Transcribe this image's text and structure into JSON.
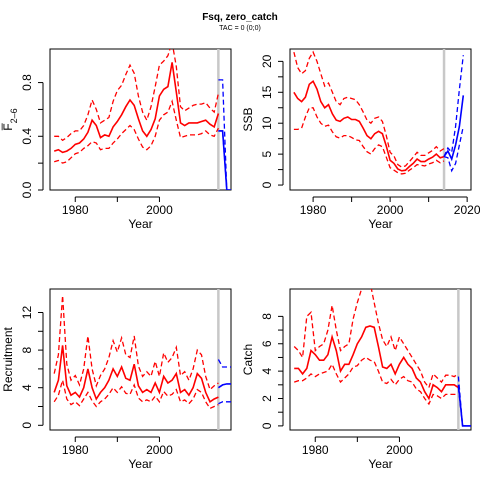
{
  "title": "Fsq, zero_catch",
  "subtitle": "TAC = 0 (0;0)",
  "chart_data": [
    {
      "type": "line",
      "ylabel": "F̅",
      "ylabel_sub": "2–6",
      "xlabel": "Year",
      "xlim": [
        1974,
        2017
      ],
      "ylim": [
        0,
        1.05
      ],
      "xticks": [
        1980,
        2000
      ],
      "yticks": [
        0.0,
        0.4,
        0.8
      ],
      "ytick_labels": [
        "0.0",
        "0.4",
        "0.8"
      ],
      "marker_year": 2014,
      "hist_x": [
        1975,
        1976,
        1977,
        1978,
        1979,
        1980,
        1981,
        1982,
        1983,
        1984,
        1985,
        1986,
        1987,
        1988,
        1989,
        1990,
        1991,
        1992,
        1993,
        1994,
        1995,
        1996,
        1997,
        1998,
        1999,
        2000,
        2001,
        2002,
        2003,
        2004,
        2005,
        2006,
        2007,
        2008,
        2009,
        2010,
        2011,
        2012,
        2013,
        2014
      ],
      "hist_median": [
        0.29,
        0.3,
        0.28,
        0.29,
        0.31,
        0.34,
        0.35,
        0.38,
        0.43,
        0.52,
        0.48,
        0.39,
        0.41,
        0.4,
        0.47,
        0.51,
        0.56,
        0.62,
        0.67,
        0.63,
        0.53,
        0.44,
        0.4,
        0.45,
        0.53,
        0.7,
        0.75,
        0.77,
        0.95,
        0.73,
        0.5,
        0.48,
        0.5,
        0.5,
        0.5,
        0.51,
        0.52,
        0.49,
        0.47,
        0.57
      ],
      "hist_lower": [
        0.21,
        0.22,
        0.2,
        0.21,
        0.24,
        0.27,
        0.28,
        0.31,
        0.33,
        0.36,
        0.35,
        0.3,
        0.31,
        0.31,
        0.35,
        0.38,
        0.42,
        0.45,
        0.48,
        0.45,
        0.38,
        0.32,
        0.3,
        0.33,
        0.4,
        0.52,
        0.56,
        0.58,
        0.66,
        0.52,
        0.39,
        0.4,
        0.41,
        0.41,
        0.41,
        0.42,
        0.44,
        0.41,
        0.4,
        0.46
      ],
      "hist_upper": [
        0.4,
        0.4,
        0.37,
        0.39,
        0.42,
        0.44,
        0.44,
        0.48,
        0.56,
        0.67,
        0.6,
        0.5,
        0.52,
        0.54,
        0.66,
        0.74,
        0.78,
        0.86,
        0.93,
        0.87,
        0.7,
        0.58,
        0.52,
        0.62,
        0.77,
        0.93,
        0.96,
        1.0,
        1.1,
        0.92,
        0.62,
        0.59,
        0.61,
        0.63,
        0.64,
        0.64,
        0.65,
        0.61,
        0.58,
        0.72
      ],
      "proj_x": [
        2014,
        2015,
        2016,
        2017
      ],
      "proj_median": [
        0.44,
        0.44,
        0.0,
        0.0
      ],
      "proj_lower": [
        0.44,
        0.44,
        0.0,
        0.0
      ],
      "proj_upper": [
        0.82,
        0.82,
        0.0,
        0.0
      ]
    },
    {
      "type": "line",
      "ylabel": "SSB",
      "xlabel": "Year",
      "xlim": [
        1974,
        2021
      ],
      "ylim": [
        -0.8,
        22
      ],
      "xticks": [
        1980,
        2000,
        2020
      ],
      "yticks": [
        0,
        5,
        10,
        15,
        20
      ],
      "ytick_labels": [
        "0",
        "5",
        "10",
        "15",
        "20"
      ],
      "marker_year": 2014,
      "hist_x": [
        1975,
        1976,
        1977,
        1978,
        1979,
        1980,
        1981,
        1982,
        1983,
        1984,
        1985,
        1986,
        1987,
        1988,
        1989,
        1990,
        1991,
        1992,
        1993,
        1994,
        1995,
        1996,
        1997,
        1998,
        1999,
        2000,
        2001,
        2002,
        2003,
        2004,
        2005,
        2006,
        2007,
        2008,
        2009,
        2010,
        2011,
        2012,
        2013,
        2014
      ],
      "hist_median": [
        15.0,
        14.0,
        13.5,
        14.2,
        16.3,
        16.8,
        15.5,
        13.5,
        12.5,
        13.0,
        11.5,
        10.5,
        10.3,
        10.8,
        11.0,
        10.6,
        10.6,
        10.3,
        9.2,
        8.0,
        7.5,
        8.3,
        8.7,
        8.3,
        6.3,
        4.0,
        3.5,
        2.6,
        2.3,
        2.4,
        3.0,
        3.5,
        4.2,
        3.8,
        3.8,
        4.2,
        4.5,
        5.0,
        4.4,
        4.6
      ],
      "hist_lower": [
        9.0,
        9.0,
        9.2,
        11.0,
        12.5,
        12.5,
        11.0,
        10.0,
        9.5,
        9.7,
        8.6,
        7.8,
        7.6,
        8.0,
        8.0,
        7.7,
        7.3,
        7.2,
        6.2,
        5.4,
        5.0,
        5.9,
        6.5,
        6.2,
        4.5,
        2.8,
        2.4,
        2.0,
        1.8,
        1.9,
        2.4,
        2.8,
        3.3,
        3.2,
        3.1,
        3.4,
        3.6,
        4.0,
        3.6,
        3.9
      ],
      "hist_upper": [
        21.5,
        19.0,
        18.0,
        18.5,
        20.5,
        21.5,
        20.0,
        18.0,
        16.0,
        16.5,
        15.0,
        13.5,
        13.0,
        14.0,
        14.2,
        14.0,
        13.8,
        13.0,
        11.8,
        10.5,
        10.0,
        10.8,
        11.0,
        10.3,
        8.0,
        5.3,
        4.7,
        3.3,
        2.9,
        3.1,
        3.8,
        4.5,
        5.3,
        4.8,
        4.8,
        5.2,
        5.6,
        6.2,
        5.5,
        5.9
      ],
      "proj_x": [
        2014,
        2015,
        2016,
        2017,
        2018,
        2019
      ],
      "proj_median": [
        4.6,
        5.5,
        4.2,
        6.5,
        9.5,
        14.5
      ],
      "proj_lower": [
        4.6,
        4.4,
        2.3,
        3.5,
        6.5,
        9.5
      ],
      "proj_upper": [
        4.6,
        6.0,
        5.3,
        9.5,
        15.5,
        21.0
      ]
    },
    {
      "type": "line",
      "ylabel": "Recruitment",
      "xlabel": "Year",
      "xlim": [
        1974,
        2017
      ],
      "ylim": [
        -0.5,
        14.5
      ],
      "xticks": [
        1980,
        2000
      ],
      "yticks": [
        0,
        4,
        8,
        12
      ],
      "ytick_labels": [
        "0",
        "4",
        "8",
        "12"
      ],
      "marker_year": 2014,
      "hist_x": [
        1975,
        1976,
        1977,
        1978,
        1979,
        1980,
        1981,
        1982,
        1983,
        1984,
        1985,
        1986,
        1987,
        1988,
        1989,
        1990,
        1991,
        1992,
        1993,
        1994,
        1995,
        1996,
        1997,
        1998,
        1999,
        2000,
        2001,
        2002,
        2003,
        2004,
        2005,
        2006,
        2007,
        2008,
        2009,
        2010,
        2011,
        2012,
        2013,
        2014
      ],
      "hist_median": [
        3.5,
        4.8,
        8.5,
        4.2,
        3.2,
        3.5,
        3.0,
        4.0,
        6.0,
        4.0,
        2.8,
        3.5,
        4.0,
        4.8,
        6.0,
        5.2,
        6.2,
        5.0,
        4.8,
        6.5,
        4.2,
        3.5,
        3.8,
        3.5,
        4.5,
        3.5,
        5.2,
        4.5,
        4.8,
        5.5,
        3.5,
        3.8,
        3.2,
        4.0,
        5.5,
        5.0,
        3.5,
        2.5,
        2.8,
        3.0
      ],
      "hist_lower": [
        2.5,
        3.2,
        4.8,
        2.8,
        2.2,
        2.5,
        2.1,
        2.8,
        3.5,
        2.6,
        2.0,
        2.5,
        2.8,
        3.3,
        4.0,
        3.5,
        4.1,
        3.4,
        3.3,
        4.3,
        2.9,
        2.5,
        2.7,
        2.5,
        3.1,
        2.5,
        3.6,
        3.1,
        3.3,
        3.8,
        2.5,
        2.7,
        2.3,
        2.8,
        3.8,
        3.5,
        2.5,
        1.8,
        2.0,
        2.2
      ],
      "hist_upper": [
        5.5,
        7.5,
        13.8,
        6.5,
        4.8,
        5.3,
        4.3,
        6.0,
        9.5,
        6.0,
        4.2,
        5.3,
        6.0,
        7.2,
        9.0,
        7.8,
        9.3,
        7.5,
        7.2,
        9.5,
        6.3,
        5.2,
        5.7,
        5.2,
        6.8,
        5.2,
        7.7,
        6.7,
        7.2,
        8.3,
        5.3,
        5.7,
        4.8,
        6.0,
        8.0,
        7.5,
        5.2,
        3.8,
        4.2,
        4.5
      ],
      "proj_x": [
        2014,
        2015,
        2016,
        2017
      ],
      "proj_median": [
        4.0,
        4.3,
        4.4,
        4.4
      ],
      "proj_lower": [
        2.3,
        2.5,
        2.5,
        2.5
      ],
      "proj_upper": [
        7.0,
        6.2,
        6.2,
        6.2
      ]
    },
    {
      "type": "line",
      "ylabel": "Catch",
      "xlabel": "Year",
      "xlim": [
        1974,
        2017
      ],
      "ylim": [
        -0.3,
        10
      ],
      "xticks": [
        1980,
        2000
      ],
      "yticks": [
        0,
        2,
        4,
        6,
        8
      ],
      "ytick_labels": [
        "0",
        "2",
        "4",
        "6",
        "8"
      ],
      "marker_year": 2014,
      "hist_x": [
        1975,
        1976,
        1977,
        1978,
        1979,
        1980,
        1981,
        1982,
        1983,
        1984,
        1985,
        1986,
        1987,
        1988,
        1989,
        1990,
        1991,
        1992,
        1993,
        1994,
        1995,
        1996,
        1997,
        1998,
        1999,
        2000,
        2001,
        2002,
        2003,
        2004,
        2005,
        2006,
        2007,
        2008,
        2009,
        2010,
        2011,
        2012,
        2013,
        2014
      ],
      "hist_median": [
        4.2,
        4.2,
        3.8,
        4.2,
        5.5,
        5.2,
        4.8,
        4.8,
        5.2,
        6.5,
        5.5,
        4.0,
        4.5,
        4.5,
        5.2,
        6.0,
        6.5,
        7.2,
        7.3,
        7.2,
        5.8,
        4.3,
        4.2,
        4.5,
        3.8,
        4.5,
        5.0,
        4.5,
        4.2,
        3.5,
        3.2,
        2.5,
        2.0,
        3.0,
        2.8,
        2.5,
        3.0,
        3.0,
        3.0,
        2.8
      ],
      "hist_lower": [
        3.2,
        3.3,
        3.3,
        3.5,
        3.8,
        3.6,
        3.8,
        3.9,
        4.0,
        4.5,
        3.8,
        3.2,
        3.5,
        3.8,
        4.3,
        4.4,
        4.8,
        5.0,
        4.8,
        4.7,
        4.0,
        3.2,
        3.1,
        3.4,
        3.0,
        3.4,
        3.6,
        3.3,
        3.2,
        2.7,
        2.5,
        2.0,
        1.6,
        2.3,
        2.2,
        2.0,
        2.3,
        2.3,
        2.3,
        2.3
      ],
      "hist_upper": [
        5.8,
        5.5,
        5.0,
        8.0,
        8.3,
        5.5,
        5.8,
        6.0,
        7.0,
        8.8,
        7.0,
        5.5,
        5.8,
        6.0,
        7.8,
        9.0,
        10.0,
        10.5,
        10.5,
        9.0,
        7.5,
        6.3,
        5.8,
        6.5,
        5.5,
        6.5,
        6.0,
        5.5,
        5.0,
        4.5,
        4.0,
        3.2,
        2.8,
        3.8,
        3.5,
        3.2,
        3.7,
        3.7,
        3.6,
        3.8
      ],
      "proj_x": [
        2014,
        2015,
        2016,
        2017
      ],
      "proj_median": [
        3.0,
        0.0,
        0.0,
        0.0
      ],
      "proj_lower": [
        2.8,
        0.0,
        0.0,
        0.0
      ],
      "proj_upper": [
        3.6,
        0.0,
        0.0,
        0.0
      ]
    }
  ]
}
